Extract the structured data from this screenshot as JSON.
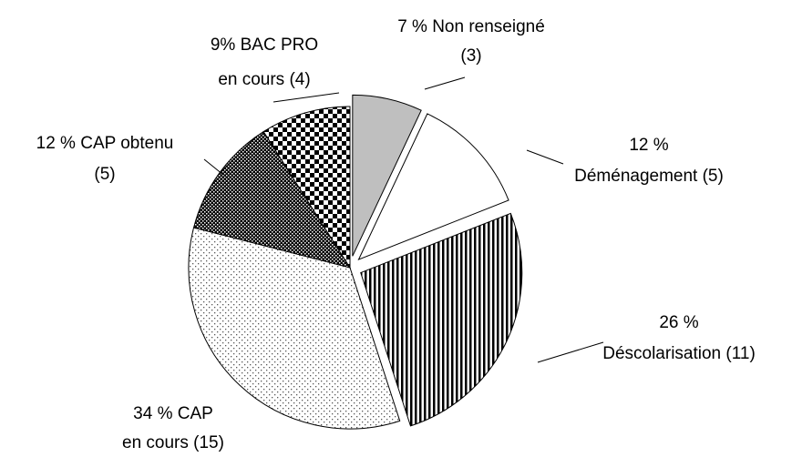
{
  "chart_data": {
    "type": "pie",
    "categories": [
      [
        "7 % Non renseigné",
        "(3)"
      ],
      [
        "12 %",
        "Déménagement (5)"
      ],
      [
        "26 %",
        "Déscolarisation (11)"
      ],
      [
        "34 % CAP",
        "en cours (15)"
      ],
      [
        "12 % CAP obtenu",
        "(5)"
      ],
      [
        "9% BAC PRO",
        "en cours (4)"
      ]
    ],
    "values": [
      7,
      12,
      26,
      34,
      12,
      9
    ],
    "exploded": [
      true,
      true,
      true,
      false,
      false,
      false
    ],
    "patterns": [
      "gray",
      "white",
      "vertical-stripes",
      "sparse-dots",
      "dense-dots",
      "checker"
    ]
  }
}
